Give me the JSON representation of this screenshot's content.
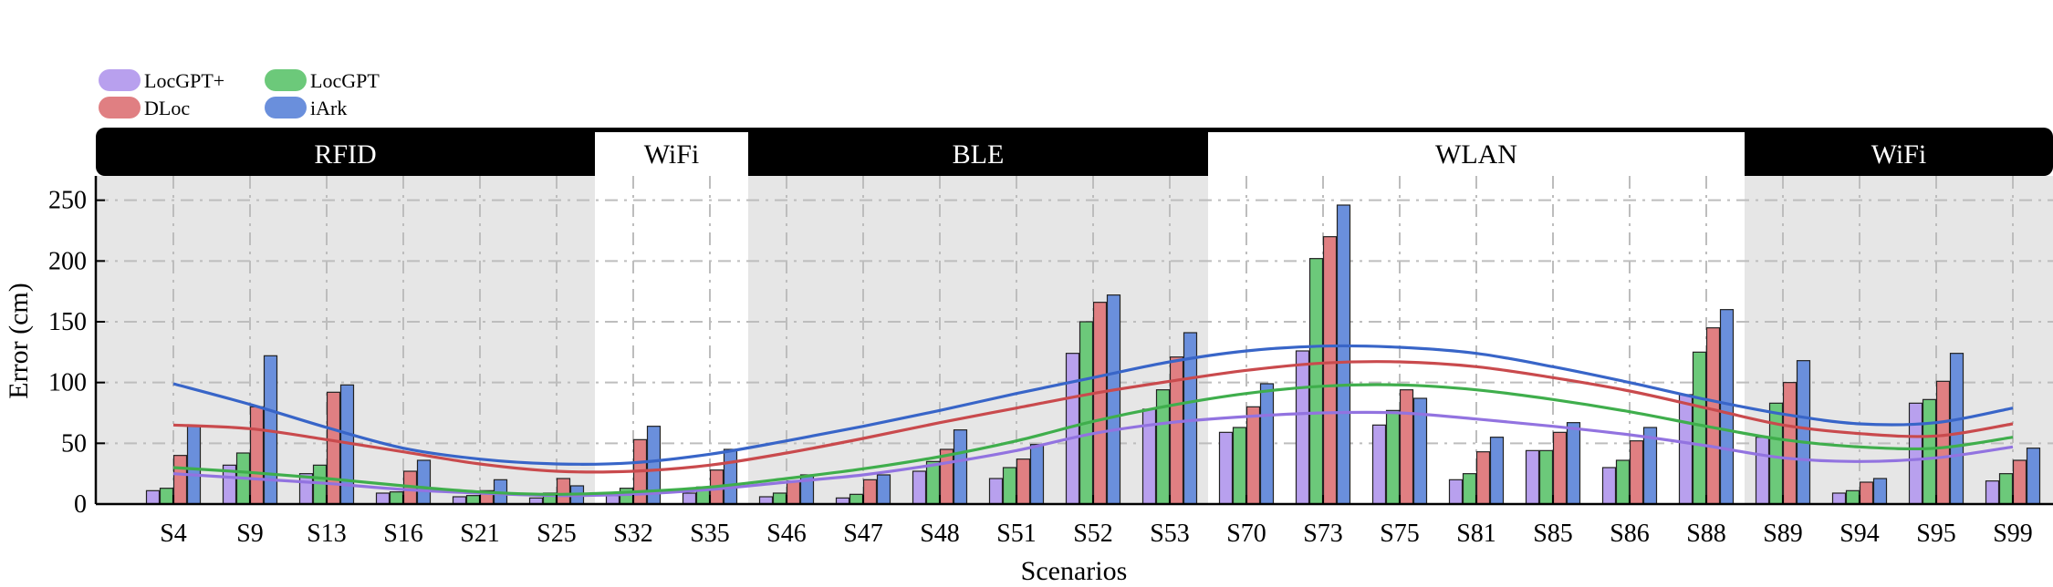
{
  "chart_data": {
    "type": "bar",
    "title": "",
    "xlabel": "Scenarios",
    "ylabel": "Error (cm)",
    "ylim": [
      0,
      270
    ],
    "yticks": [
      0,
      50,
      100,
      150,
      200,
      250
    ],
    "grid": true,
    "legend_position": "top-left",
    "categories": [
      "S4",
      "S9",
      "S13",
      "S16",
      "S21",
      "S25",
      "S32",
      "S35",
      "S46",
      "S47",
      "S48",
      "S51",
      "S52",
      "S53",
      "S70",
      "S73",
      "S75",
      "S81",
      "S85",
      "S86",
      "S88",
      "S89",
      "S94",
      "S95",
      "S99"
    ],
    "bands": [
      {
        "label": "RFID",
        "start": 0,
        "end": 5,
        "style": "dark"
      },
      {
        "label": "WiFi",
        "start": 6,
        "end": 7,
        "style": "light"
      },
      {
        "label": "BLE",
        "start": 8,
        "end": 13,
        "style": "dark"
      },
      {
        "label": "WLAN",
        "start": 14,
        "end": 20,
        "style": "light"
      },
      {
        "label": "WiFi",
        "start": 21,
        "end": 24,
        "style": "dark"
      }
    ],
    "series": [
      {
        "name": "LocGPT+",
        "color": "#b8a0ee",
        "values": [
          11,
          32,
          25,
          9,
          6,
          5,
          7,
          9,
          6,
          5,
          27,
          21,
          124,
          78,
          59,
          126,
          65,
          20,
          44,
          30,
          90,
          55,
          9,
          83,
          19
        ],
        "trend": [
          25,
          21,
          17,
          12,
          9,
          7,
          8,
          12,
          18,
          24,
          33,
          44,
          58,
          67,
          72,
          75,
          75,
          70,
          64,
          57,
          48,
          38,
          35,
          38,
          47
        ]
      },
      {
        "name": "LocGPT",
        "color": "#6cc97a",
        "values": [
          13,
          42,
          32,
          10,
          7,
          9,
          13,
          14,
          9,
          8,
          35,
          30,
          150,
          94,
          63,
          202,
          77,
          25,
          44,
          36,
          125,
          83,
          11,
          86,
          25
        ],
        "trend": [
          30,
          26,
          21,
          15,
          10,
          8,
          10,
          14,
          21,
          29,
          39,
          52,
          68,
          81,
          91,
          97,
          98,
          94,
          86,
          76,
          64,
          53,
          47,
          46,
          55
        ]
      },
      {
        "name": "DLoc",
        "color": "#e07f82",
        "values": [
          40,
          80,
          92,
          27,
          11,
          21,
          53,
          28,
          19,
          20,
          45,
          37,
          166,
          121,
          80,
          220,
          94,
          43,
          59,
          52,
          145,
          100,
          18,
          101,
          36
        ],
        "trend": [
          65,
          62,
          53,
          43,
          33,
          27,
          27,
          32,
          42,
          54,
          67,
          79,
          91,
          101,
          110,
          116,
          117,
          113,
          104,
          93,
          79,
          65,
          58,
          56,
          66
        ]
      },
      {
        "name": "iArk",
        "color": "#6a8fdc",
        "values": [
          64,
          122,
          98,
          36,
          20,
          15,
          64,
          45,
          24,
          24,
          61,
          49,
          172,
          141,
          99,
          246,
          87,
          55,
          67,
          63,
          160,
          118,
          21,
          124,
          46
        ],
        "trend": [
          99,
          82,
          63,
          46,
          37,
          33,
          34,
          41,
          52,
          64,
          77,
          91,
          104,
          117,
          126,
          130,
          129,
          124,
          113,
          100,
          86,
          74,
          66,
          67,
          79
        ]
      }
    ],
    "trend_line_colors": [
      "#9273e0",
      "#3fae4c",
      "#c94a4d",
      "#3865c8"
    ]
  }
}
